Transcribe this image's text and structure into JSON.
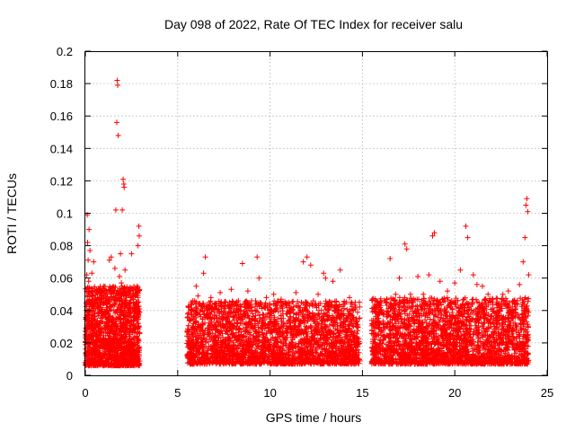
{
  "chart_data": {
    "type": "scatter",
    "title": "Day 098 of 2022, Rate Of TEC Index for receiver salu",
    "xlabel": "GPS time / hours",
    "ylabel": "ROTI / TECUs",
    "xlim": [
      0,
      25
    ],
    "ylim": [
      0,
      0.2
    ],
    "xticks": [
      0,
      5,
      10,
      15,
      20,
      25
    ],
    "yticks": [
      0,
      0.02,
      0.04,
      0.06,
      0.08,
      0.1,
      0.12,
      0.14,
      0.16,
      0.18,
      0.2
    ],
    "xtick_labels": [
      "0",
      "5",
      "10",
      "15",
      "20",
      "25"
    ],
    "ytick_labels": [
      "0",
      "0.02",
      "0.04",
      "0.06",
      "0.08",
      "0.1",
      "0.12",
      "0.14",
      "0.16",
      "0.18",
      "0.2"
    ],
    "grid": true,
    "marker": "+",
    "color": "#ff0000",
    "series": [
      {
        "points": [
          [
            0.02,
            0.019
          ],
          [
            0.05,
            0.035
          ],
          [
            0.08,
            0.062
          ],
          [
            0.1,
            0.099
          ],
          [
            0.12,
            0.082
          ],
          [
            0.15,
            0.071
          ],
          [
            0.18,
            0.058
          ],
          [
            0.2,
            0.09
          ],
          [
            0.22,
            0.045
          ],
          [
            0.25,
            0.077
          ],
          [
            0.3,
            0.052
          ],
          [
            0.35,
            0.063
          ],
          [
            0.4,
            0.049
          ],
          [
            0.45,
            0.07
          ],
          [
            0.5,
            0.036
          ],
          [
            0.55,
            0.041
          ],
          [
            0.6,
            0.031
          ],
          [
            0.7,
            0.028
          ],
          [
            0.8,
            0.045
          ],
          [
            0.9,
            0.038
          ],
          [
            1.0,
            0.055
          ],
          [
            1.1,
            0.027
          ],
          [
            1.2,
            0.047
          ],
          [
            1.3,
            0.071
          ],
          [
            1.4,
            0.073
          ],
          [
            1.5,
            0.052
          ],
          [
            1.6,
            0.066
          ],
          [
            1.65,
            0.102
          ],
          [
            1.7,
            0.156
          ],
          [
            1.72,
            0.182
          ],
          [
            1.75,
            0.179
          ],
          [
            1.78,
            0.148
          ],
          [
            1.85,
            0.061
          ],
          [
            1.9,
            0.075
          ],
          [
            1.95,
            0.057
          ],
          [
            2.0,
            0.102
          ],
          [
            2.05,
            0.121
          ],
          [
            2.08,
            0.118
          ],
          [
            2.1,
            0.116
          ],
          [
            2.15,
            0.065
          ],
          [
            2.2,
            0.049
          ],
          [
            2.3,
            0.053
          ],
          [
            2.4,
            0.044
          ],
          [
            2.5,
            0.075
          ],
          [
            2.6,
            0.05
          ],
          [
            2.7,
            0.035
          ],
          [
            2.8,
            0.045
          ],
          [
            2.85,
            0.08
          ],
          [
            2.9,
            0.092
          ],
          [
            2.92,
            0.086
          ],
          [
            5.6,
            0.021
          ],
          [
            5.8,
            0.025
          ],
          [
            6.0,
            0.055
          ],
          [
            6.1,
            0.049
          ],
          [
            6.2,
            0.044
          ],
          [
            6.4,
            0.063
          ],
          [
            6.5,
            0.073
          ],
          [
            6.8,
            0.048
          ],
          [
            7.0,
            0.037
          ],
          [
            7.3,
            0.051
          ],
          [
            7.6,
            0.045
          ],
          [
            7.9,
            0.053
          ],
          [
            8.2,
            0.04
          ],
          [
            8.5,
            0.069
          ],
          [
            8.8,
            0.052
          ],
          [
            9.0,
            0.046
          ],
          [
            9.3,
            0.073
          ],
          [
            9.4,
            0.06
          ],
          [
            9.8,
            0.048
          ],
          [
            10.2,
            0.05
          ],
          [
            10.6,
            0.047
          ],
          [
            11.0,
            0.045
          ],
          [
            11.4,
            0.051
          ],
          [
            11.8,
            0.07
          ],
          [
            12.0,
            0.073
          ],
          [
            12.2,
            0.068
          ],
          [
            12.6,
            0.05
          ],
          [
            12.9,
            0.063
          ],
          [
            13.0,
            0.06
          ],
          [
            13.4,
            0.058
          ],
          [
            13.8,
            0.065
          ],
          [
            14.0,
            0.038
          ],
          [
            14.3,
            0.048
          ],
          [
            14.6,
            0.041
          ],
          [
            14.75,
            0.031
          ],
          [
            15.6,
            0.025
          ],
          [
            15.8,
            0.035
          ],
          [
            16.0,
            0.04
          ],
          [
            16.2,
            0.046
          ],
          [
            16.5,
            0.072
          ],
          [
            16.8,
            0.05
          ],
          [
            17.0,
            0.06
          ],
          [
            17.3,
            0.081
          ],
          [
            17.4,
            0.078
          ],
          [
            17.6,
            0.05
          ],
          [
            18.0,
            0.061
          ],
          [
            18.3,
            0.05
          ],
          [
            18.6,
            0.062
          ],
          [
            18.8,
            0.086
          ],
          [
            18.9,
            0.088
          ],
          [
            19.2,
            0.058
          ],
          [
            19.6,
            0.052
          ],
          [
            20.0,
            0.057
          ],
          [
            20.3,
            0.065
          ],
          [
            20.6,
            0.092
          ],
          [
            20.7,
            0.085
          ],
          [
            21.0,
            0.062
          ],
          [
            21.2,
            0.056
          ],
          [
            21.5,
            0.055
          ],
          [
            21.8,
            0.05
          ],
          [
            22.0,
            0.046
          ],
          [
            22.3,
            0.044
          ],
          [
            22.6,
            0.05
          ],
          [
            22.9,
            0.052
          ],
          [
            23.2,
            0.046
          ],
          [
            23.5,
            0.056
          ],
          [
            23.7,
            0.07
          ],
          [
            23.8,
            0.085
          ],
          [
            23.85,
            0.105
          ],
          [
            23.9,
            0.109
          ],
          [
            23.95,
            0.101
          ],
          [
            24.0,
            0.062
          ]
        ],
        "dense_bands": [
          {
            "x": [
              0.0,
              2.95
            ],
            "y_low": 0.006,
            "y_high": 0.055,
            "n": 1500
          },
          {
            "x": [
              5.5,
              14.85
            ],
            "y_low": 0.007,
            "y_high": 0.046,
            "n": 2700
          },
          {
            "x": [
              15.5,
              24.0
            ],
            "y_low": 0.007,
            "y_high": 0.048,
            "n": 2500
          }
        ]
      }
    ]
  }
}
